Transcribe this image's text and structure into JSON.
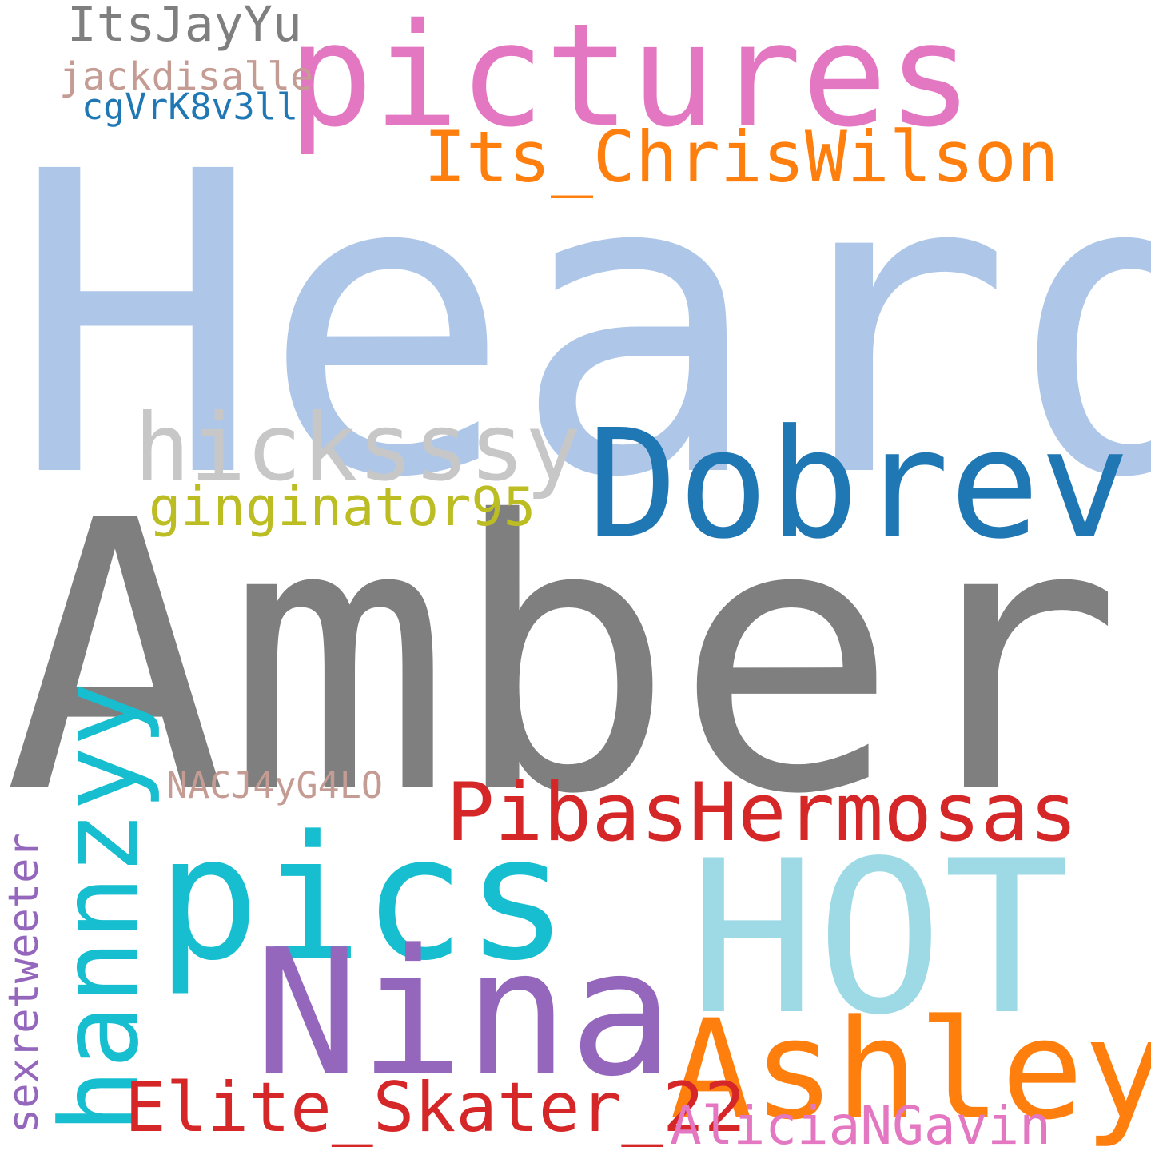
{
  "words": [
    {
      "text": "Heard",
      "color": "#aec7e8"
    },
    {
      "text": "Amber",
      "color": "#7f7f7f"
    },
    {
      "text": "pictures",
      "color": "#e377c2"
    },
    {
      "text": "Dobrev",
      "color": "#1f77b4"
    },
    {
      "text": "HOT",
      "color": "#9edae5"
    },
    {
      "text": "pics",
      "color": "#17becf"
    },
    {
      "text": "Nina",
      "color": "#9467bd"
    },
    {
      "text": "Ashley",
      "color": "#ff7f0e"
    },
    {
      "text": "PibasHermosas",
      "color": "#d62728"
    },
    {
      "text": "Its_ChrisWilson",
      "color": "#ff7f0e"
    },
    {
      "text": "hicksssy",
      "color": "#c7c7c7"
    },
    {
      "text": "hannzyy",
      "color": "#17becf"
    },
    {
      "text": "Elite_Skater_22",
      "color": "#d62728"
    },
    {
      "text": "ginginator95",
      "color": "#bcbd22"
    },
    {
      "text": "AliciaNGavin",
      "color": "#e377c2"
    },
    {
      "text": "sexretweeter",
      "color": "#9467bd"
    },
    {
      "text": "ItsJayYu",
      "color": "#7f7f7f"
    },
    {
      "text": "jackdisalle",
      "color": "#c49c94"
    },
    {
      "text": "cgVrK8v3ll",
      "color": "#1f77b4"
    },
    {
      "text": "NACJ4yG4LO",
      "color": "#c49c94"
    }
  ]
}
